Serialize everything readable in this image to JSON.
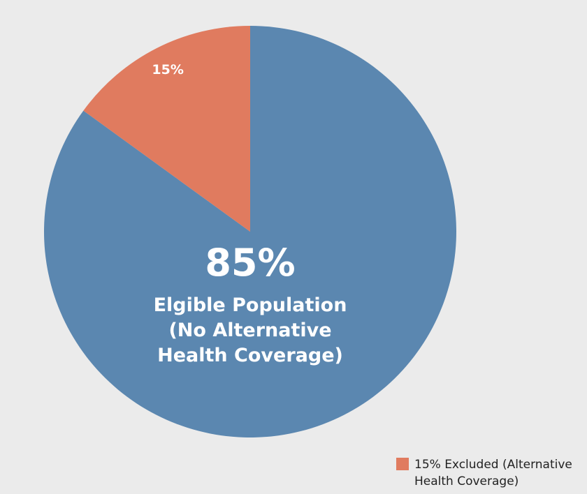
{
  "chart_data": {
    "type": "pie",
    "categories": [
      "Elgible Population (No Alternative Health Coverage)",
      "15% Excluded (Alternative Health Coverage)"
    ],
    "values": [
      85,
      15
    ],
    "value_labels": [
      "85%",
      "15%"
    ],
    "colors": [
      "#5b87b0",
      "#e07b5f"
    ],
    "legend": {
      "position": "bottom-right",
      "entries": [
        1
      ]
    }
  }
}
